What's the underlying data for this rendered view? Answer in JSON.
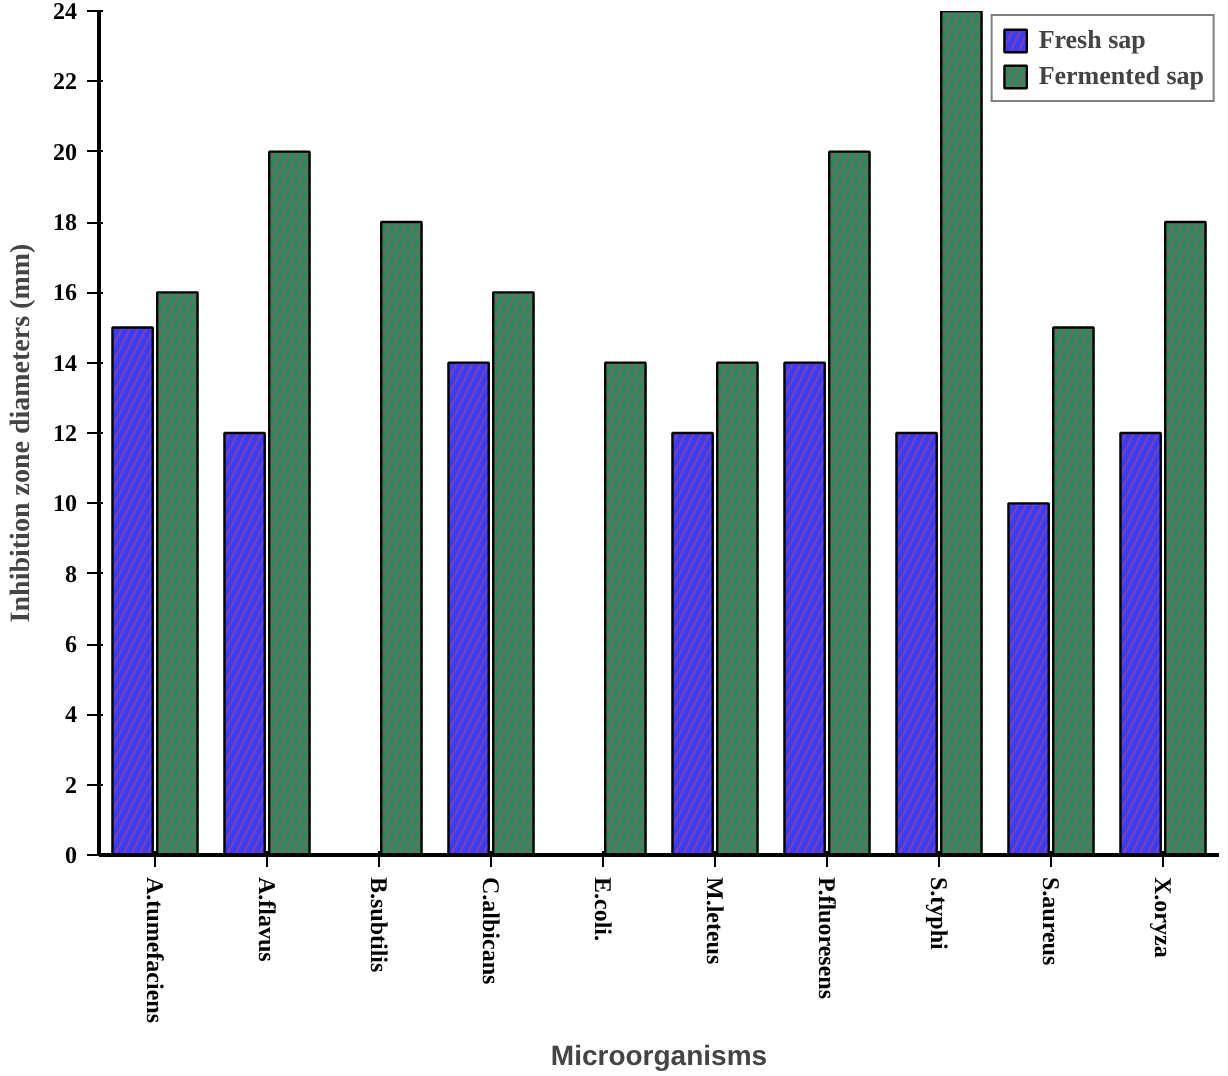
{
  "chart_data": {
    "type": "bar",
    "xlabel": "Microorganisms",
    "ylabel": "Inhibition zone diameters (mm)",
    "categories": [
      "A.tumefaciens",
      "A.flavus",
      "B.subtilis",
      "C.albicans",
      "E.coli.",
      "M.leteus",
      "P.fluoresens",
      "S.typhi",
      "S.aureus",
      "X.oryza"
    ],
    "series": [
      {
        "name": "Fresh sap",
        "color": "#3c3cf0",
        "values": [
          15,
          12,
          0,
          14,
          0,
          12,
          14,
          12,
          10,
          12
        ]
      },
      {
        "name": "Fermented sap",
        "color": "#2f8a5a",
        "values": [
          16,
          20,
          18,
          16,
          14,
          14,
          20,
          24,
          15,
          18
        ]
      }
    ],
    "ylim": [
      0,
      24
    ],
    "yticks": [
      0,
      2,
      4,
      6,
      8,
      10,
      12,
      14,
      16,
      18,
      20,
      22,
      24
    ],
    "grid": false,
    "legend": "top right"
  }
}
